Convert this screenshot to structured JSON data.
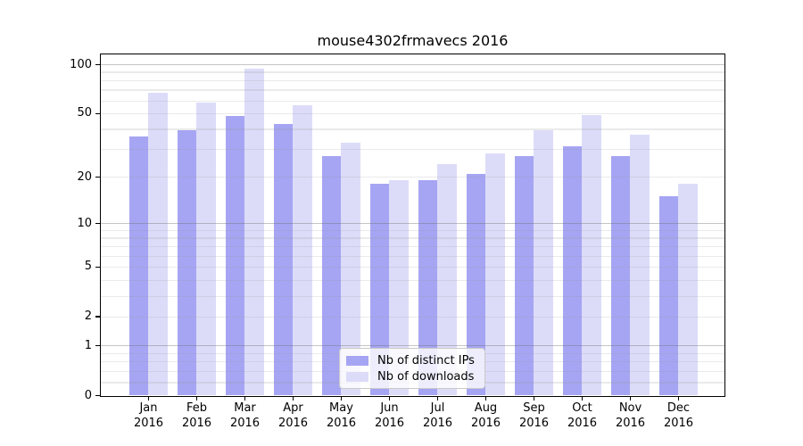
{
  "chart_data": {
    "type": "bar",
    "title": "mouse4302frmavecs 2016",
    "x_categories": [
      "Jan",
      "Feb",
      "Mar",
      "Apr",
      "May",
      "Jun",
      "Jul",
      "Aug",
      "Sep",
      "Oct",
      "Nov",
      "Dec"
    ],
    "x_year": "2016",
    "series": [
      {
        "name": "Nb of distinct IPs",
        "color": "#a6a5f3",
        "values": [
          36,
          39,
          48,
          43,
          27,
          18,
          19,
          21,
          27,
          31,
          27,
          15
        ]
      },
      {
        "name": "Nb of downloads",
        "color": "#dcdcf9",
        "values": [
          67,
          58,
          94,
          56,
          33,
          19,
          24,
          28,
          39,
          49,
          37,
          18
        ]
      }
    ],
    "y_axis": {
      "scale": "log10(value+1)",
      "tick_values": [
        0,
        1,
        2,
        5,
        10,
        20,
        50,
        100
      ],
      "tick_labels": [
        "0",
        "1",
        "2",
        "5",
        "10",
        "20",
        "50",
        "100"
      ],
      "major_grid_values": [
        1,
        10,
        100
      ],
      "minor_grid_values": [
        0.2,
        0.4,
        0.6,
        0.8,
        2,
        3,
        4,
        5,
        6,
        7,
        8,
        9,
        20,
        30,
        40,
        50,
        60,
        70,
        80,
        90
      ],
      "ylim": [
        0,
        100
      ]
    },
    "legend_position": "lower center",
    "grid": true
  },
  "style": {
    "background": "#ffffff",
    "spine_color": "#000000",
    "text_color": "#000000",
    "major_grid_color": "rgba(110,110,110,0.40)",
    "minor_grid_color": "rgba(150,150,150,0.20)",
    "legend_bg": "rgba(255,255,255,0.80)",
    "legend_border": "#c9c9c9"
  }
}
